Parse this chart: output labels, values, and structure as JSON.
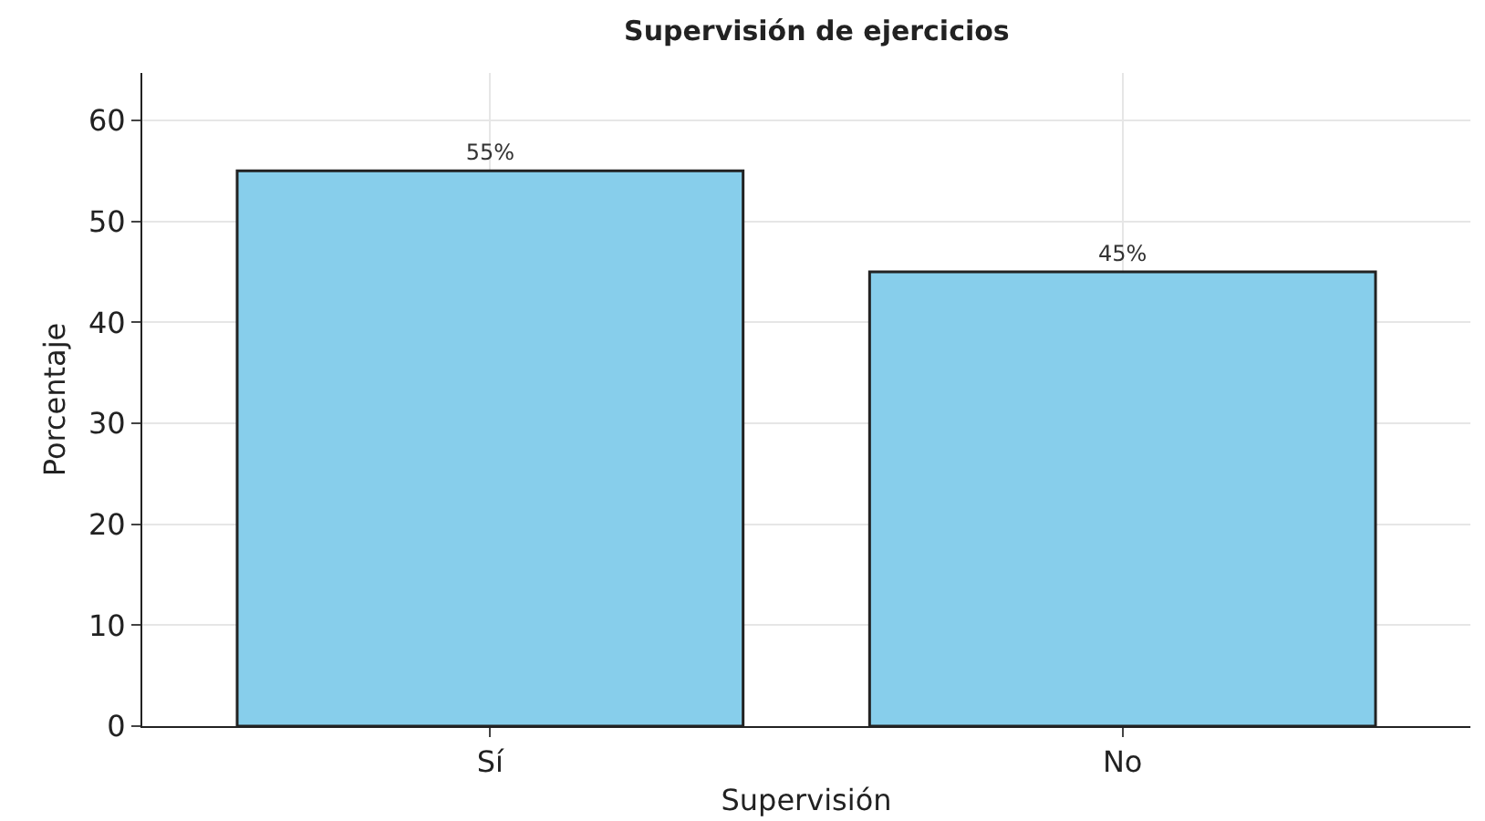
{
  "chart_data": {
    "type": "bar",
    "title": "Supervisión de ejercicios",
    "xlabel": "Supervisión",
    "ylabel": "Porcentaje",
    "categories": [
      "Sí",
      "No"
    ],
    "values": [
      55,
      45
    ],
    "color": "#87ceeb",
    "value_labels": [
      "55%",
      "45%"
    ],
    "ylim": [
      0,
      64.7
    ],
    "yticks": [
      0,
      10,
      20,
      30,
      40,
      50,
      60
    ],
    "grid": true
  }
}
